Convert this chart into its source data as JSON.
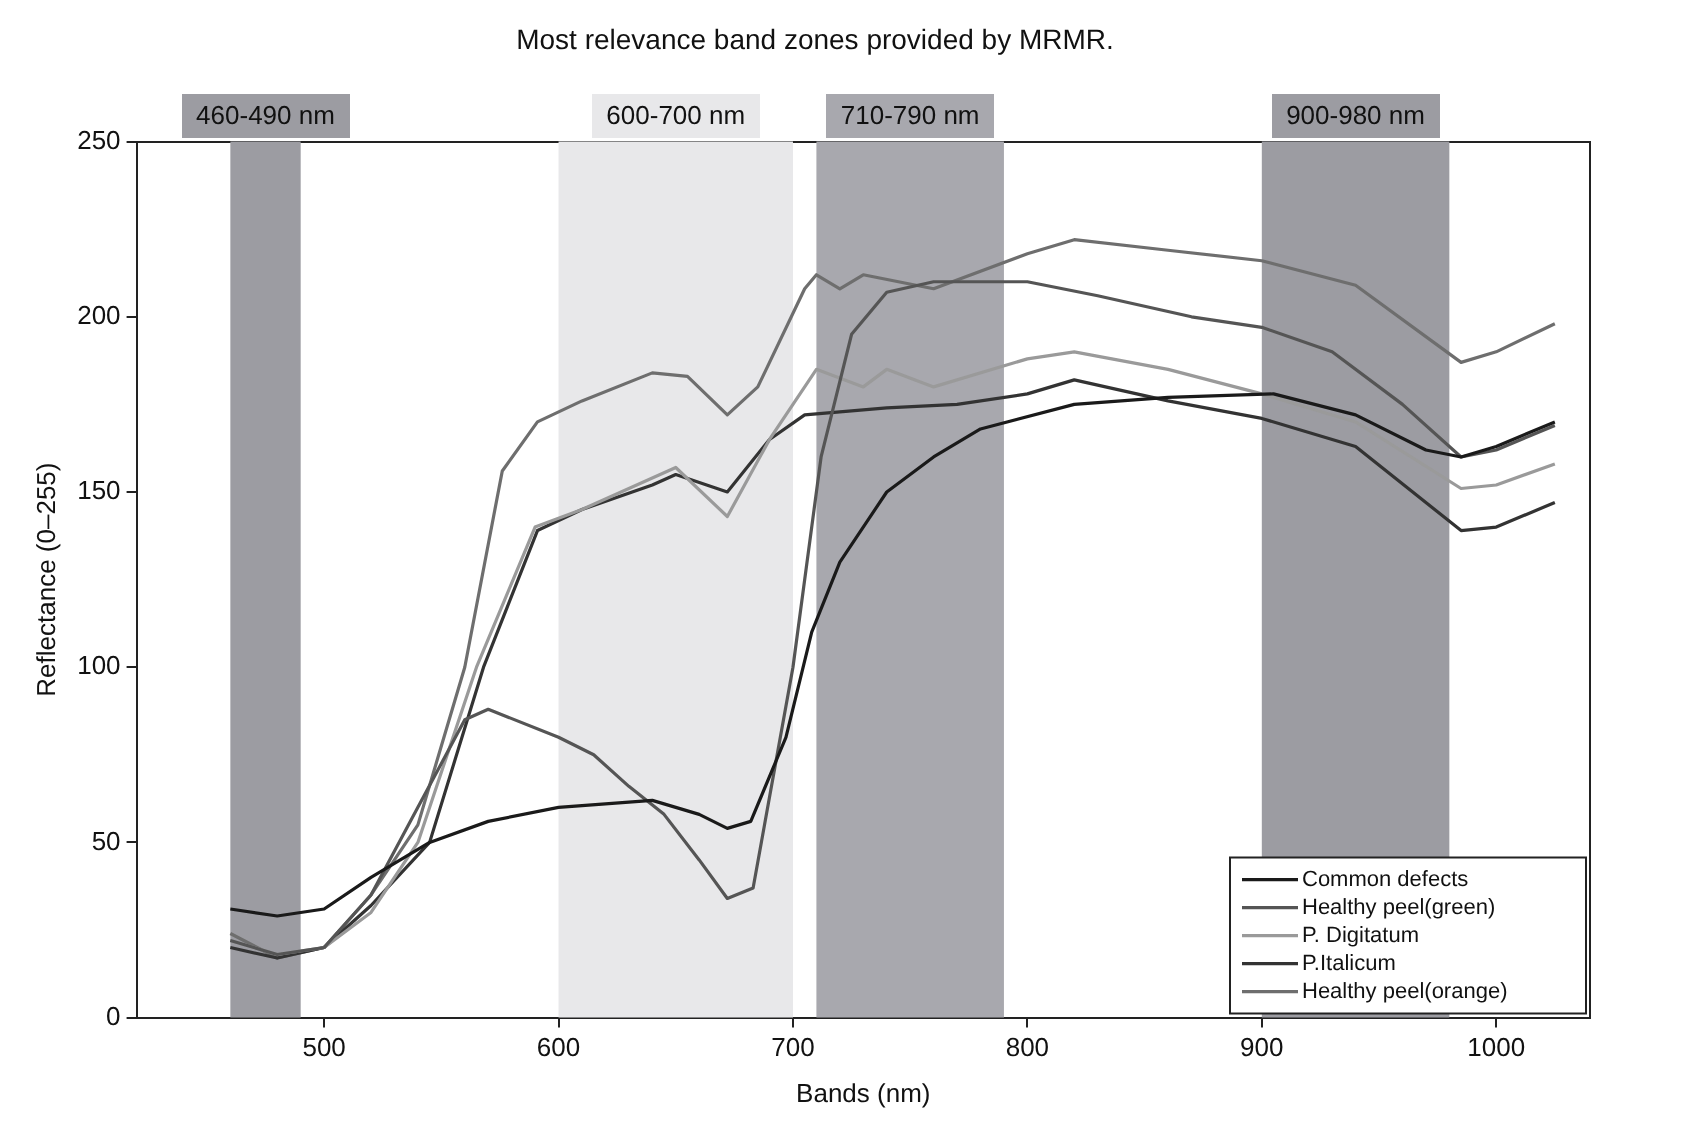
{
  "chart_data": {
    "type": "line",
    "title": "Most relevance band zones provided by MRMR.",
    "xlabel": "Bands (nm)",
    "ylabel": "Reflectance (0–255)",
    "xlim": [
      420,
      1040
    ],
    "xticks": [
      500,
      600,
      700,
      800,
      900,
      1000
    ],
    "ylim": [
      0,
      250
    ],
    "yticks": [
      0,
      50,
      100,
      150,
      200,
      250
    ],
    "grid": false,
    "legend": "bottom right",
    "marker": "none",
    "line_style": "solid",
    "bands": [
      {
        "axis": "x",
        "from": 460,
        "to": 490,
        "label": "460-490 nm",
        "color": "#9c9ca2"
      },
      {
        "axis": "x",
        "from": 600,
        "to": 700,
        "label": "600-700 nm",
        "color": "#e8e8ea"
      },
      {
        "axis": "x",
        "from": 710,
        "to": 790,
        "label": "710-790 nm",
        "color": "#a8a8ae"
      },
      {
        "axis": "x",
        "from": 900,
        "to": 980,
        "label": "900-980 nm",
        "color": "#9c9ca2"
      }
    ],
    "series": [
      {
        "name": "Common defects",
        "color": "#1a1a1a",
        "x": [
          460,
          480,
          490,
          500,
          520,
          545,
          570,
          600,
          640,
          660,
          672,
          682,
          697,
          708,
          720,
          740,
          760,
          780,
          820,
          860,
          905,
          940,
          970,
          985,
          1000,
          1025
        ],
        "values": [
          31,
          29,
          30,
          31,
          40,
          50,
          56,
          60,
          62,
          58,
          54,
          56,
          80,
          110,
          130,
          150,
          160,
          168,
          175,
          177,
          178,
          172,
          162,
          160,
          163,
          170
        ]
      },
      {
        "name": "Healthy peel(green)",
        "color": "#555555",
        "x": [
          460,
          480,
          500,
          520,
          540,
          560,
          570,
          600,
          615,
          630,
          645,
          660,
          672,
          683,
          700,
          712,
          725,
          740,
          760,
          800,
          830,
          870,
          900,
          930,
          960,
          985,
          1000,
          1025
        ],
        "values": [
          22,
          18,
          20,
          35,
          60,
          85,
          88,
          80,
          75,
          66,
          58,
          45,
          34,
          37,
          100,
          160,
          195,
          207,
          210,
          210,
          206,
          200,
          197,
          190,
          175,
          160,
          162,
          169
        ]
      },
      {
        "name": "P. Digitatum",
        "color": "#9a9a9a",
        "x": [
          460,
          480,
          500,
          520,
          540,
          565,
          590,
          610,
          650,
          672,
          690,
          700,
          710,
          730,
          740,
          760,
          800,
          820,
          860,
          900,
          940,
          985,
          1000,
          1025
        ],
        "values": [
          22,
          18,
          20,
          30,
          50,
          100,
          140,
          145,
          157,
          143,
          165,
          175,
          185,
          180,
          185,
          180,
          188,
          190,
          185,
          178,
          170,
          151,
          152,
          158
        ]
      },
      {
        "name": "P.Italicum",
        "color": "#333333",
        "x": [
          460,
          480,
          500,
          520,
          545,
          568,
          591,
          610,
          640,
          650,
          672,
          690,
          705,
          740,
          770,
          800,
          820,
          860,
          900,
          940,
          985,
          1000,
          1025
        ],
        "values": [
          20,
          17,
          20,
          32,
          50,
          100,
          139,
          145,
          152,
          155,
          150,
          165,
          172,
          174,
          175,
          178,
          182,
          176,
          171,
          163,
          139,
          140,
          147
        ]
      },
      {
        "name": "Healthy peel(orange)",
        "color": "#6e6e6e",
        "x": [
          460,
          480,
          500,
          520,
          540,
          560,
          576,
          591,
          610,
          640,
          655,
          672,
          685,
          705,
          710,
          720,
          730,
          760,
          800,
          820,
          860,
          900,
          940,
          985,
          1000,
          1025
        ],
        "values": [
          24,
          17,
          20,
          35,
          55,
          100,
          156,
          170,
          176,
          184,
          183,
          172,
          180,
          208,
          212,
          208,
          212,
          208,
          218,
          222,
          219,
          216,
          209,
          187,
          190,
          198
        ]
      }
    ]
  }
}
